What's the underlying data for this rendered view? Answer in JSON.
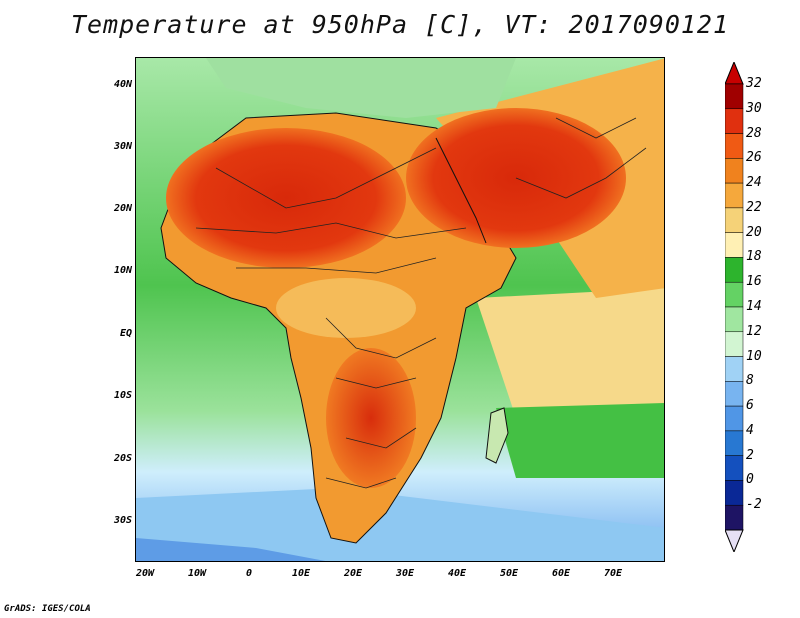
{
  "title": "Temperature at 950hPa [C], VT: 2017090121",
  "footer": "GrADS: IGES/COLA",
  "lat_ticks": [
    "40N",
    "30N",
    "20N",
    "10N",
    "EQ",
    "10S",
    "20S",
    "30S"
  ],
  "lon_ticks": [
    "20W",
    "10W",
    "0",
    "10E",
    "20E",
    "30E",
    "40E",
    "50E",
    "60E",
    "70E"
  ],
  "colorbar": {
    "labels": [
      "32",
      "30",
      "28",
      "26",
      "24",
      "22",
      "20",
      "18",
      "16",
      "14",
      "12",
      "10",
      "8",
      "6",
      "4",
      "2",
      "0",
      "-2"
    ],
    "colors": [
      "#a00000",
      "#e0300f",
      "#f05a14",
      "#f0821e",
      "#f5a83c",
      "#f5d278",
      "#fff0b4",
      "#2db42d",
      "#64d264",
      "#a0e6a0",
      "#d2f5d2",
      "#a0d2f5",
      "#78b4f0",
      "#5096e6",
      "#2878d2",
      "#1450be",
      "#0a2896",
      "#1e1464"
    ],
    "top_arrow_color": "#c80000",
    "bottom_arrow_color": "#e6e0f5"
  }
}
